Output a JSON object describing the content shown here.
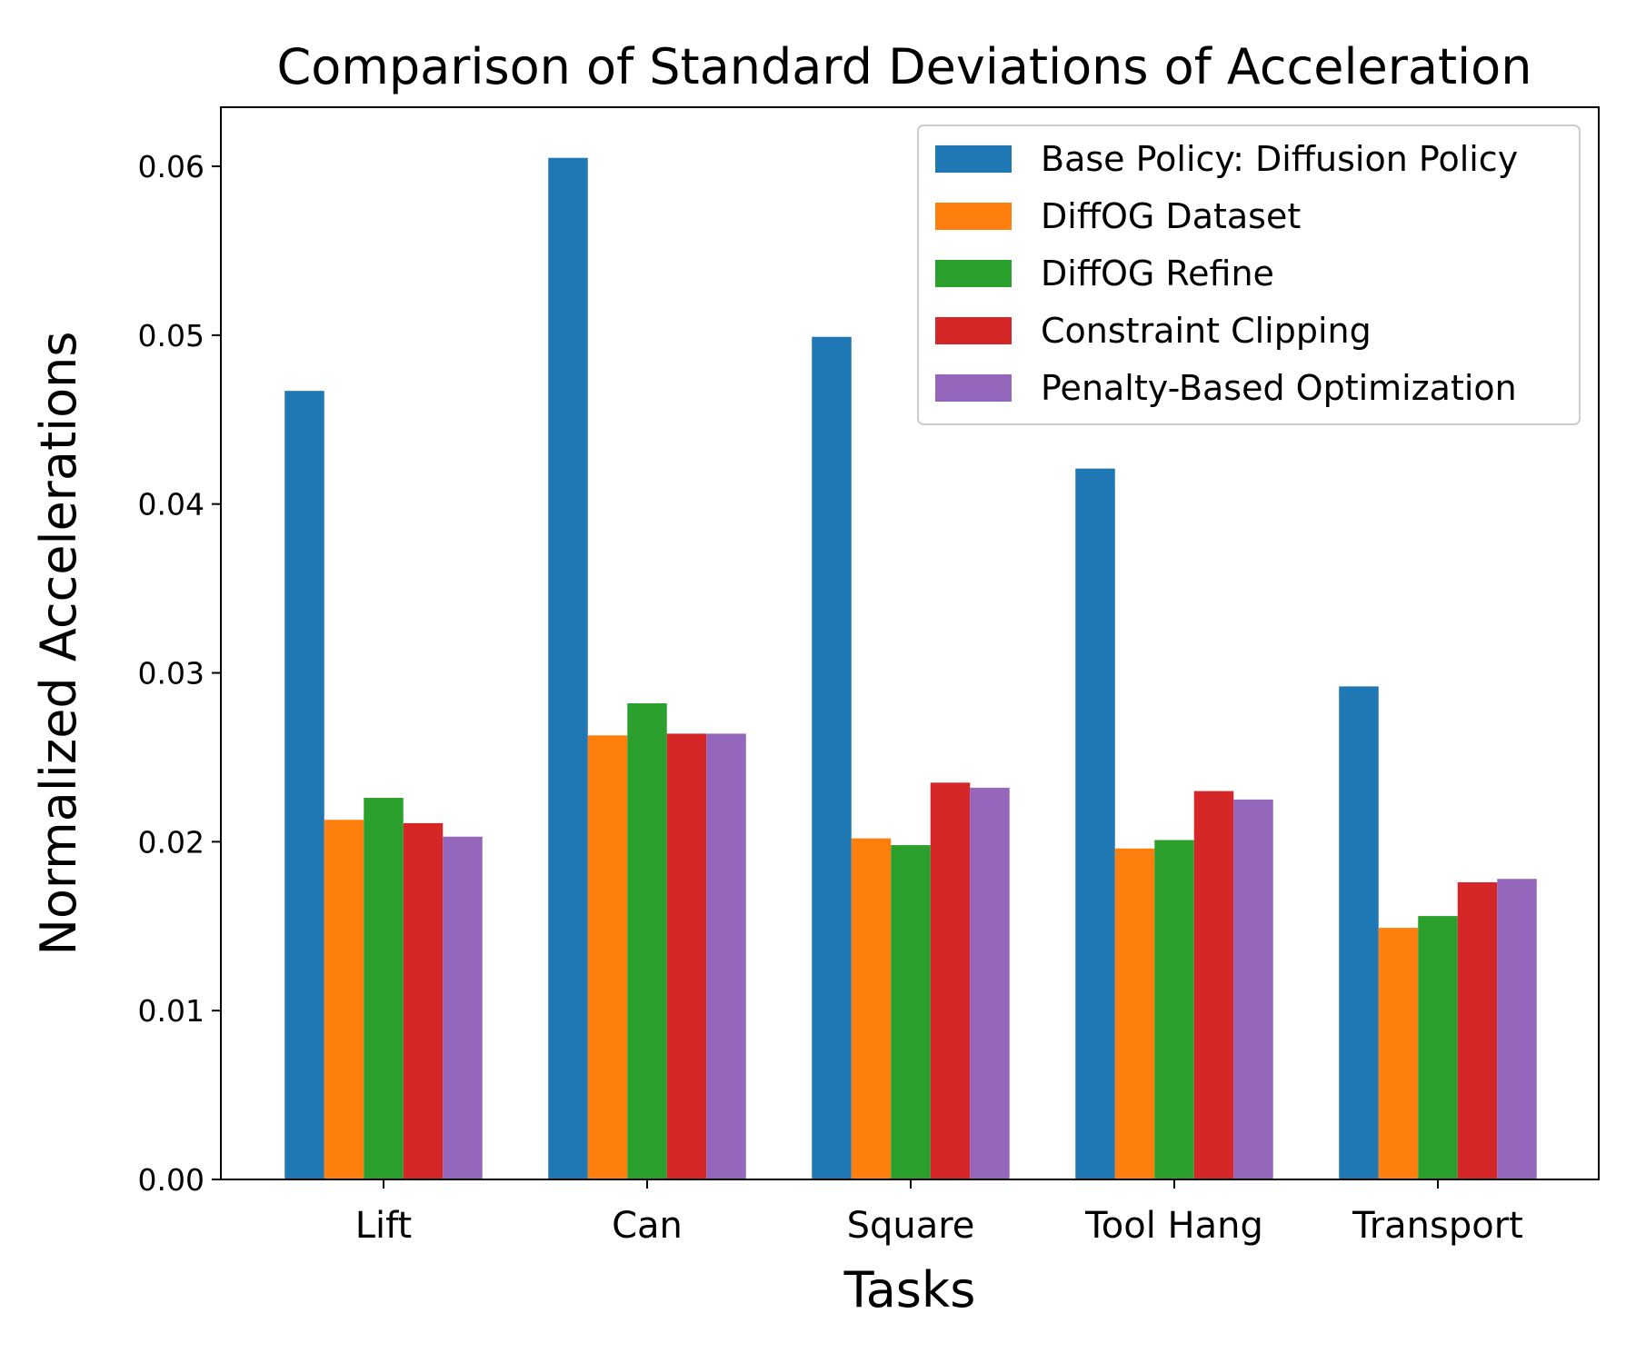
{
  "chart_data": {
    "type": "bar",
    "title": "Comparison of Standard Deviations of Acceleration",
    "xlabel": "Tasks",
    "ylabel": "Normalized Accelerations",
    "categories": [
      "Lift",
      "Can",
      "Square",
      "Tool Hang",
      "Transport"
    ],
    "ylim": [
      0,
      0.0635
    ],
    "yticks": [
      0.0,
      0.01,
      0.02,
      0.03,
      0.04,
      0.05,
      0.06
    ],
    "ytick_labels": [
      "0.00",
      "0.01",
      "0.02",
      "0.03",
      "0.04",
      "0.05",
      "0.06"
    ],
    "grid": false,
    "legend_position": "top-right",
    "series": [
      {
        "name": "Base Policy: Diffusion Policy",
        "color": "#1f77b4",
        "values": [
          0.0467,
          0.0605,
          0.0499,
          0.0421,
          0.0292
        ]
      },
      {
        "name": "DiffOG Dataset",
        "color": "#ff7f0e",
        "values": [
          0.0213,
          0.0263,
          0.0202,
          0.0196,
          0.0149
        ]
      },
      {
        "name": "DiffOG Refine",
        "color": "#2ca02c",
        "values": [
          0.0226,
          0.0282,
          0.0198,
          0.0201,
          0.0156
        ]
      },
      {
        "name": "Constraint Clipping",
        "color": "#d62728",
        "values": [
          0.0211,
          0.0264,
          0.0235,
          0.023,
          0.0176
        ]
      },
      {
        "name": "Penalty-Based Optimization",
        "color": "#9467bd",
        "values": [
          0.0203,
          0.0264,
          0.0232,
          0.0225,
          0.0178
        ]
      }
    ]
  }
}
